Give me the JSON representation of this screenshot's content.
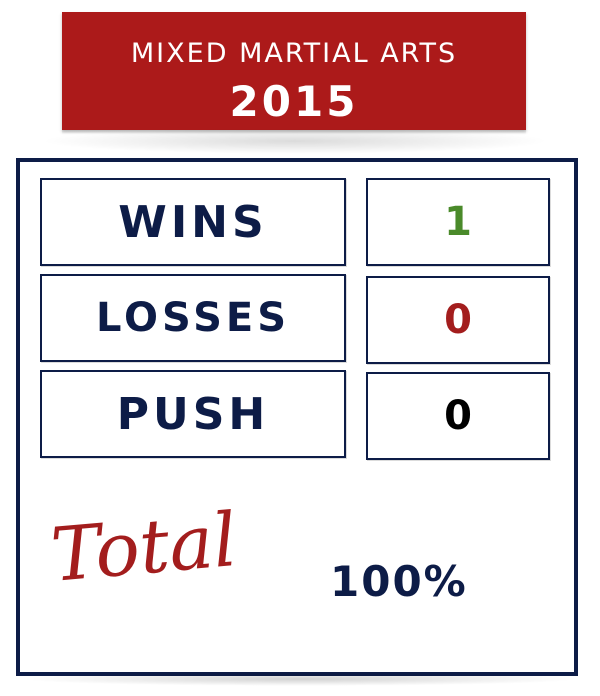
{
  "header": {
    "line1": "MIXED MARTIAL ARTS",
    "line2": "2015"
  },
  "record": {
    "rows": [
      {
        "label": "WINS",
        "value": "1",
        "value_color": "#4a8a2a"
      },
      {
        "label": "LOSSES",
        "value": "0",
        "value_color": "#a31d1d"
      },
      {
        "label": "PUSH",
        "value": "0",
        "value_color": "#000000"
      }
    ]
  },
  "total": {
    "label": "Total",
    "value": "100%"
  },
  "colors": {
    "banner": "#ac1a1a",
    "navy": "#0d1c47",
    "script_red": "#a31d1d"
  }
}
